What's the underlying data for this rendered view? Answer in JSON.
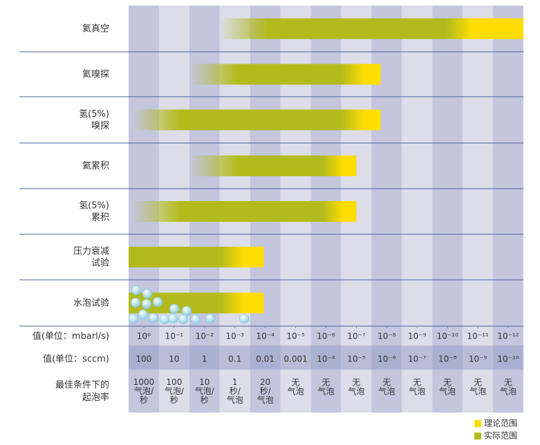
{
  "chart_data": {
    "type": "range-bar",
    "categories": [
      [
        "氦真空"
      ],
      [
        "氦嗅探"
      ],
      [
        "氢(5%)",
        "嗅探"
      ],
      [
        "氦累积"
      ],
      [
        "氢(5%)",
        "累积"
      ],
      [
        "压力衰减",
        "试验"
      ],
      [
        "水泡试验"
      ]
    ],
    "xlim": [
      0.5,
      -12.5
    ],
    "xlabel": "值(单位：mbarl/s)",
    "xticks": [
      {
        "value": 0,
        "label": "10⁰"
      },
      {
        "value": -1,
        "label": "10⁻¹"
      },
      {
        "value": -2,
        "label": "10⁻²"
      },
      {
        "value": -3,
        "label": "10⁻³"
      },
      {
        "value": -4,
        "label": "10⁻⁴"
      },
      {
        "value": -5,
        "label": "10⁻⁵"
      },
      {
        "value": -6,
        "label": "10⁻⁶"
      },
      {
        "value": -7,
        "label": "10⁻⁷"
      },
      {
        "value": -8,
        "label": "10⁻⁸"
      },
      {
        "value": -9,
        "label": "10⁻⁹"
      },
      {
        "value": -10,
        "label": "10⁻¹⁰"
      },
      {
        "value": -11,
        "label": "10⁻¹¹"
      },
      {
        "value": -12,
        "label": "10⁻¹²"
      }
    ],
    "sccm_row": {
      "label": "值(单位：sccm)",
      "values": [
        "100",
        "10",
        "1",
        "0.1",
        "0.01",
        "0.001",
        "10⁻⁴",
        "10⁻⁵",
        "10⁻⁶",
        "10⁻⁷",
        "10⁻⁸",
        "10⁻⁹",
        "10⁻¹⁰"
      ]
    },
    "bubble_row": {
      "label": [
        "最佳条件下的",
        "起泡率"
      ],
      "values": [
        [
          "1000",
          "气泡/",
          "秒"
        ],
        [
          "100",
          "气泡/",
          "秒"
        ],
        [
          "10",
          "气泡/",
          "秒"
        ],
        [
          "1",
          "秒/",
          "气泡"
        ],
        [
          "20",
          "秒/",
          "气泡"
        ],
        [
          "无",
          "气泡"
        ],
        [
          "无",
          "气泡"
        ],
        [
          "无",
          "气泡"
        ],
        [
          "无",
          "气泡"
        ],
        [
          "无",
          "气泡"
        ],
        [
          "无",
          "气泡"
        ],
        [
          "无",
          "气泡"
        ],
        [
          "无",
          "气泡"
        ]
      ]
    },
    "series": [
      {
        "name": "实际范围",
        "color": "#b3bb1c",
        "values": [
          [
            -2.5,
            -10
          ],
          [
            -1.5,
            -6.5
          ],
          [
            0.4,
            -6.5
          ],
          [
            -1.5,
            -5.9
          ],
          [
            0.4,
            -5.9
          ],
          [
            0.5,
            -2.5
          ],
          [
            0.5,
            -2.5
          ]
        ]
      },
      {
        "name": "理论范围",
        "color": "#ffdd00",
        "values": [
          [
            -10,
            -12.5
          ],
          [
            -6.5,
            -7.8
          ],
          [
            -6.5,
            -7.8
          ],
          [
            -5.9,
            -7.0
          ],
          [
            -5.9,
            -7.0
          ],
          [
            -2.5,
            -3.95
          ],
          [
            -2.5,
            -3.95
          ]
        ]
      }
    ]
  }
}
